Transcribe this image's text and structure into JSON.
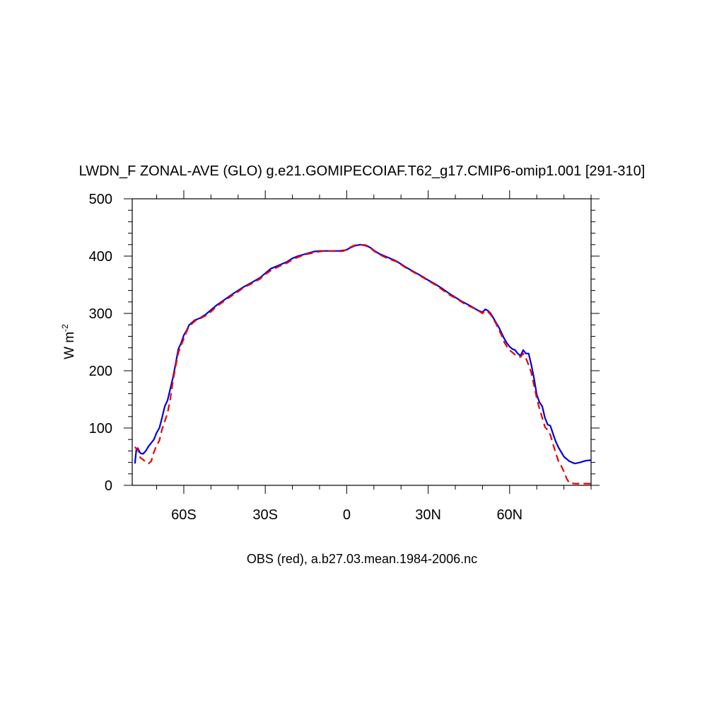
{
  "chart_data": {
    "type": "line",
    "title": "LWDN_F ZONAL-AVE (GLO) g.e21.GOMIPECOIAF.T62_g17.CMIP6-omip1.001 [291-310]",
    "xlabel": "OBS (red), a.b27.03.mean.1984-2006.nc",
    "ylabel_main": "W m",
    "ylabel_sup": "-2",
    "xlim": [
      -79,
      90
    ],
    "ylim": [
      0,
      500
    ],
    "x_ticks": [
      {
        "value": -60,
        "label": "60S"
      },
      {
        "value": -30,
        "label": "30S"
      },
      {
        "value": 0,
        "label": "0"
      },
      {
        "value": 30,
        "label": "30N"
      },
      {
        "value": 60,
        "label": "60N"
      }
    ],
    "y_ticks": [
      {
        "value": 0,
        "label": "0"
      },
      {
        "value": 100,
        "label": "100"
      },
      {
        "value": 200,
        "label": "200"
      },
      {
        "value": 300,
        "label": "300"
      },
      {
        "value": 400,
        "label": "400"
      },
      {
        "value": 500,
        "label": "500"
      }
    ],
    "series": [
      {
        "color": "#0000dd",
        "dash": "solid",
        "x": [
          -78,
          -77.5,
          -77,
          -76,
          -75,
          -74,
          -73,
          -72,
          -71,
          -70,
          -69,
          -68,
          -67,
          -66,
          -65,
          -64,
          -63,
          -62,
          -61,
          -60,
          -59,
          -58,
          -57,
          -56,
          -55,
          -54,
          -52,
          -50,
          -48,
          -45,
          -42,
          -40,
          -38,
          -35,
          -32,
          -30,
          -28,
          -25,
          -22,
          -20,
          -18,
          -15,
          -12,
          -10,
          -8,
          -5,
          -3,
          -1,
          0,
          1,
          3,
          5,
          7,
          9,
          10,
          12,
          15,
          18,
          20,
          22,
          25,
          28,
          30,
          33,
          35,
          38,
          40,
          42,
          44,
          46,
          48,
          50,
          51,
          52,
          53,
          54,
          55,
          56,
          57,
          58,
          59,
          60,
          61,
          62,
          63,
          64,
          65,
          66,
          67,
          68,
          69,
          70,
          71,
          72,
          73,
          74,
          75,
          76,
          77,
          78,
          79,
          80,
          82,
          84,
          86,
          88,
          90
        ],
        "y": [
          38,
          62,
          65,
          56,
          55,
          60,
          68,
          74,
          80,
          92,
          100,
          118,
          138,
          148,
          168,
          188,
          212,
          238,
          248,
          262,
          270,
          280,
          284,
          288,
          290,
          292,
          298,
          306,
          314,
          324,
          334,
          340,
          346,
          354,
          362,
          370,
          378,
          384,
          390,
          396,
          400,
          404,
          408,
          409,
          409,
          409,
          409,
          410,
          411,
          414,
          418,
          420,
          419,
          414,
          410,
          404,
          398,
          392,
          386,
          380,
          372,
          364,
          358,
          350,
          344,
          334,
          328,
          322,
          317,
          312,
          306,
          302,
          307,
          305,
          300,
          292,
          284,
          276,
          266,
          256,
          248,
          242,
          238,
          236,
          230,
          226,
          236,
          230,
          230,
          210,
          186,
          158,
          145,
          138,
          118,
          106,
          104,
          90,
          76,
          66,
          58,
          50,
          42,
          38,
          40,
          43,
          44
        ]
      },
      {
        "color": "#ee0000",
        "dash": "dashed",
        "x": [
          -78,
          -77.5,
          -77,
          -76,
          -75,
          -74,
          -73,
          -72,
          -71,
          -70,
          -69,
          -68,
          -67,
          -66,
          -65,
          -64,
          -63,
          -62,
          -61,
          -60,
          -59,
          -58,
          -57,
          -56,
          -55,
          -54,
          -52,
          -50,
          -48,
          -45,
          -42,
          -40,
          -38,
          -35,
          -32,
          -30,
          -28,
          -25,
          -22,
          -20,
          -18,
          -15,
          -12,
          -10,
          -8,
          -5,
          -3,
          -1,
          0,
          1,
          3,
          5,
          7,
          9,
          10,
          12,
          15,
          18,
          20,
          22,
          25,
          28,
          30,
          33,
          35,
          38,
          40,
          42,
          44,
          46,
          48,
          50,
          51,
          52,
          53,
          54,
          55,
          56,
          57,
          58,
          59,
          60,
          61,
          62,
          63,
          64,
          65,
          66,
          67,
          68,
          69,
          70,
          71,
          72,
          73,
          74,
          75,
          76,
          77,
          78,
          79,
          80,
          81,
          82,
          84,
          86,
          88,
          90
        ],
        "y": [
          67,
          64,
          63,
          48,
          45,
          40,
          38,
          42,
          58,
          70,
          78,
          98,
          112,
          126,
          150,
          182,
          208,
          232,
          244,
          256,
          268,
          278,
          282,
          286,
          290,
          291,
          296,
          303,
          312,
          322,
          332,
          338,
          345,
          352,
          360,
          368,
          375,
          382,
          388,
          394,
          398,
          403,
          406,
          408,
          409,
          409,
          408,
          409,
          412,
          415,
          419,
          420,
          418,
          413,
          409,
          403,
          396,
          391,
          385,
          379,
          371,
          363,
          357,
          349,
          342,
          332,
          327,
          321,
          315,
          311,
          306,
          300,
          305,
          303,
          298,
          290,
          282,
          272,
          262,
          250,
          242,
          236,
          232,
          228,
          225,
          224,
          230,
          222,
          210,
          196,
          174,
          152,
          134,
          118,
          102,
          96,
          88,
          72,
          56,
          42,
          34,
          24,
          12,
          4,
          3,
          3,
          3,
          3
        ]
      }
    ]
  }
}
